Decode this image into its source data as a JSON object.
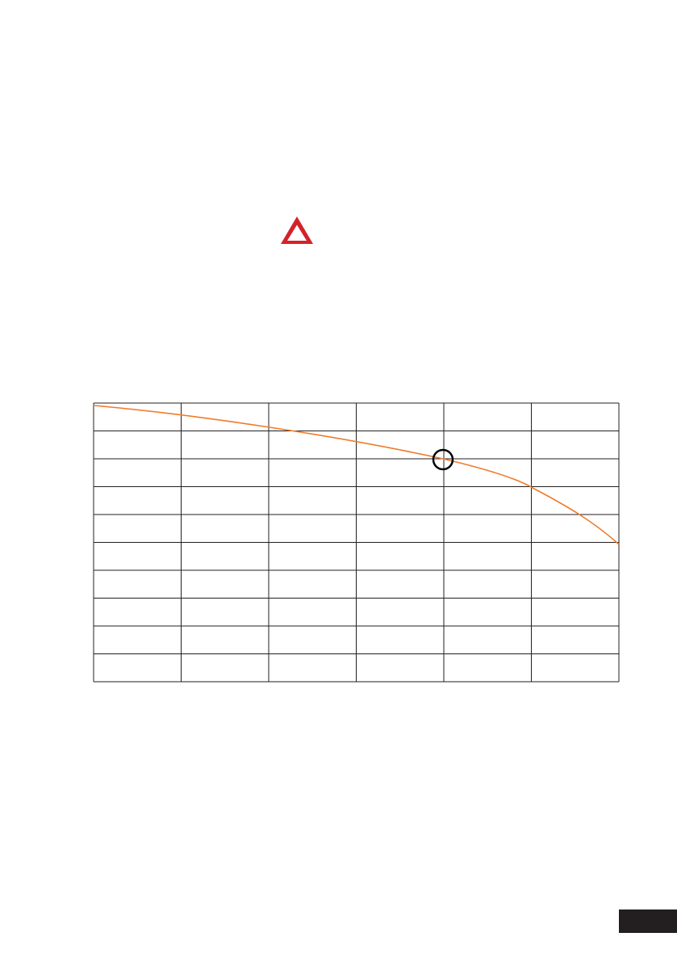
{
  "warning": {
    "icon": "warning-triangle-icon",
    "color": "#d2232a"
  },
  "chart": {
    "grid_columns": 6,
    "grid_rows": 10,
    "curve_color": "#f07a2a",
    "marker": "circle",
    "grid_color": "#231f20"
  },
  "page_tab": {
    "color": "#231f20"
  }
}
